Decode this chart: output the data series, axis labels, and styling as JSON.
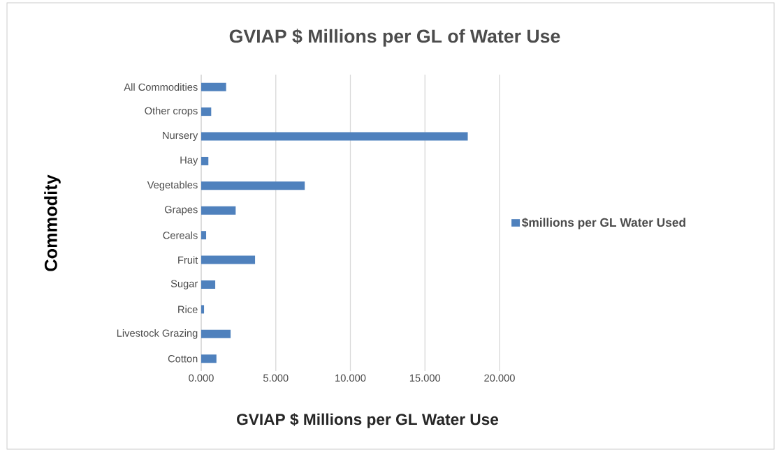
{
  "chart_data": {
    "type": "bar",
    "orientation": "horizontal",
    "title": "GVIAP $ Millions per GL of Water Use",
    "xlabel": "GVIAP $ Millions per GL Water Use",
    "ylabel": "Commodity",
    "categories": [
      "All Commodities",
      "Other crops",
      "Nursery",
      "Hay",
      "Vegetables",
      "Grapes",
      "Cereals",
      "Fruit",
      "Sugar",
      "Rice",
      "Livestock Grazing",
      "Cotton"
    ],
    "series": [
      {
        "name": "$millions per GL Water Used",
        "color": "#4f81bd",
        "values": [
          1.67,
          0.67,
          17.87,
          0.48,
          6.94,
          2.31,
          0.33,
          3.61,
          0.94,
          0.19,
          1.97,
          1.02
        ]
      }
    ],
    "xlim": [
      0,
      20
    ],
    "xticks": [
      {
        "value": 0,
        "label": "0.000"
      },
      {
        "value": 5,
        "label": "5.000"
      },
      {
        "value": 10,
        "label": "10.000"
      },
      {
        "value": 15,
        "label": "15.000"
      },
      {
        "value": 20,
        "label": "20.000"
      }
    ],
    "grid": "x",
    "legend": "right"
  }
}
